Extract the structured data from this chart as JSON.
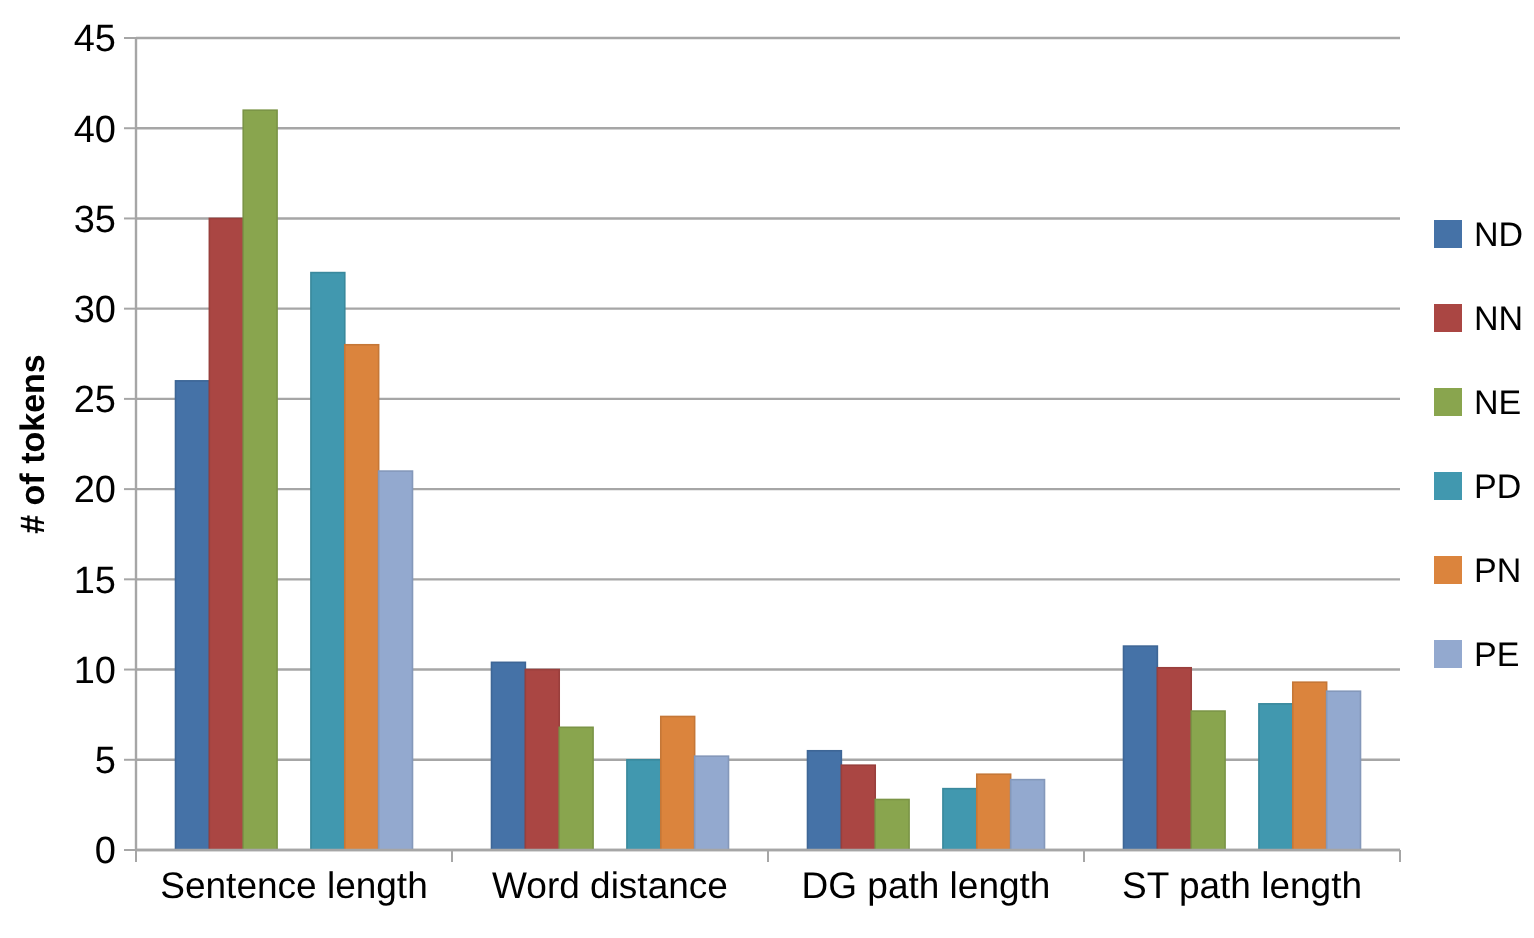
{
  "chart_data": {
    "type": "bar",
    "ylabel": "# of tokens",
    "categories": [
      "Sentence length",
      "Word distance",
      "DG path length",
      "ST path length"
    ],
    "ylim": [
      0,
      45
    ],
    "yticks": [
      0,
      5,
      10,
      15,
      20,
      25,
      30,
      35,
      40,
      45
    ],
    "grid": "y",
    "legend": "right",
    "series": [
      {
        "name": "ND",
        "color": "#4572a7",
        "values": [
          26,
          10.4,
          5.5,
          11.3
        ]
      },
      {
        "name": "NN",
        "color": "#aa4643",
        "values": [
          35,
          10,
          4.7,
          10.1
        ]
      },
      {
        "name": "NE",
        "color": "#89a54e",
        "values": [
          41,
          6.8,
          2.8,
          7.7
        ]
      },
      {
        "name": "PD",
        "color": "#4198af",
        "values": [
          32,
          5,
          3.4,
          8.1
        ]
      },
      {
        "name": "PN",
        "color": "#db843d",
        "values": [
          28,
          7.4,
          4.2,
          9.3
        ]
      },
      {
        "name": "PE",
        "color": "#93a9cf",
        "values": [
          21,
          5.2,
          3.9,
          8.8
        ]
      }
    ]
  }
}
